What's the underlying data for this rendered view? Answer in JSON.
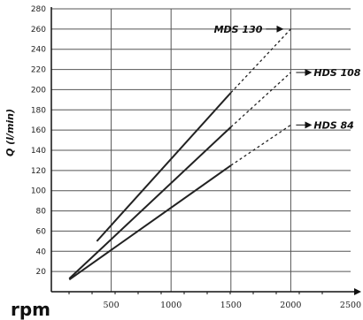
{
  "chart_data": {
    "type": "line",
    "title": "",
    "xlabel": "rpm",
    "ylabel": "Q (l/min)",
    "xlim": [
      0,
      2500
    ],
    "ylim": [
      0,
      280
    ],
    "grid": true,
    "x_ticks": [
      500,
      1000,
      1500,
      2000,
      2500
    ],
    "y_ticks": [
      20,
      40,
      60,
      80,
      100,
      120,
      140,
      160,
      180,
      200,
      220,
      240,
      260,
      280
    ],
    "series": [
      {
        "name": "MDS 130",
        "points": [
          [
            380,
            50
          ],
          [
            1500,
            197
          ]
        ],
        "dashed_extension": [
          [
            1500,
            197
          ],
          [
            2000,
            260
          ]
        ]
      },
      {
        "name": "HDS 108",
        "points": [
          [
            150,
            13
          ],
          [
            1500,
            163
          ]
        ],
        "dashed_extension": [
          [
            1500,
            163
          ],
          [
            2000,
            217
          ]
        ]
      },
      {
        "name": "HDS 84",
        "points": [
          [
            150,
            12
          ],
          [
            1500,
            125
          ]
        ],
        "dashed_extension": [
          [
            1500,
            125
          ],
          [
            2000,
            165
          ]
        ]
      }
    ],
    "colors": {
      "line": "#222222",
      "grid": "#555555",
      "axis": "#111111"
    }
  }
}
